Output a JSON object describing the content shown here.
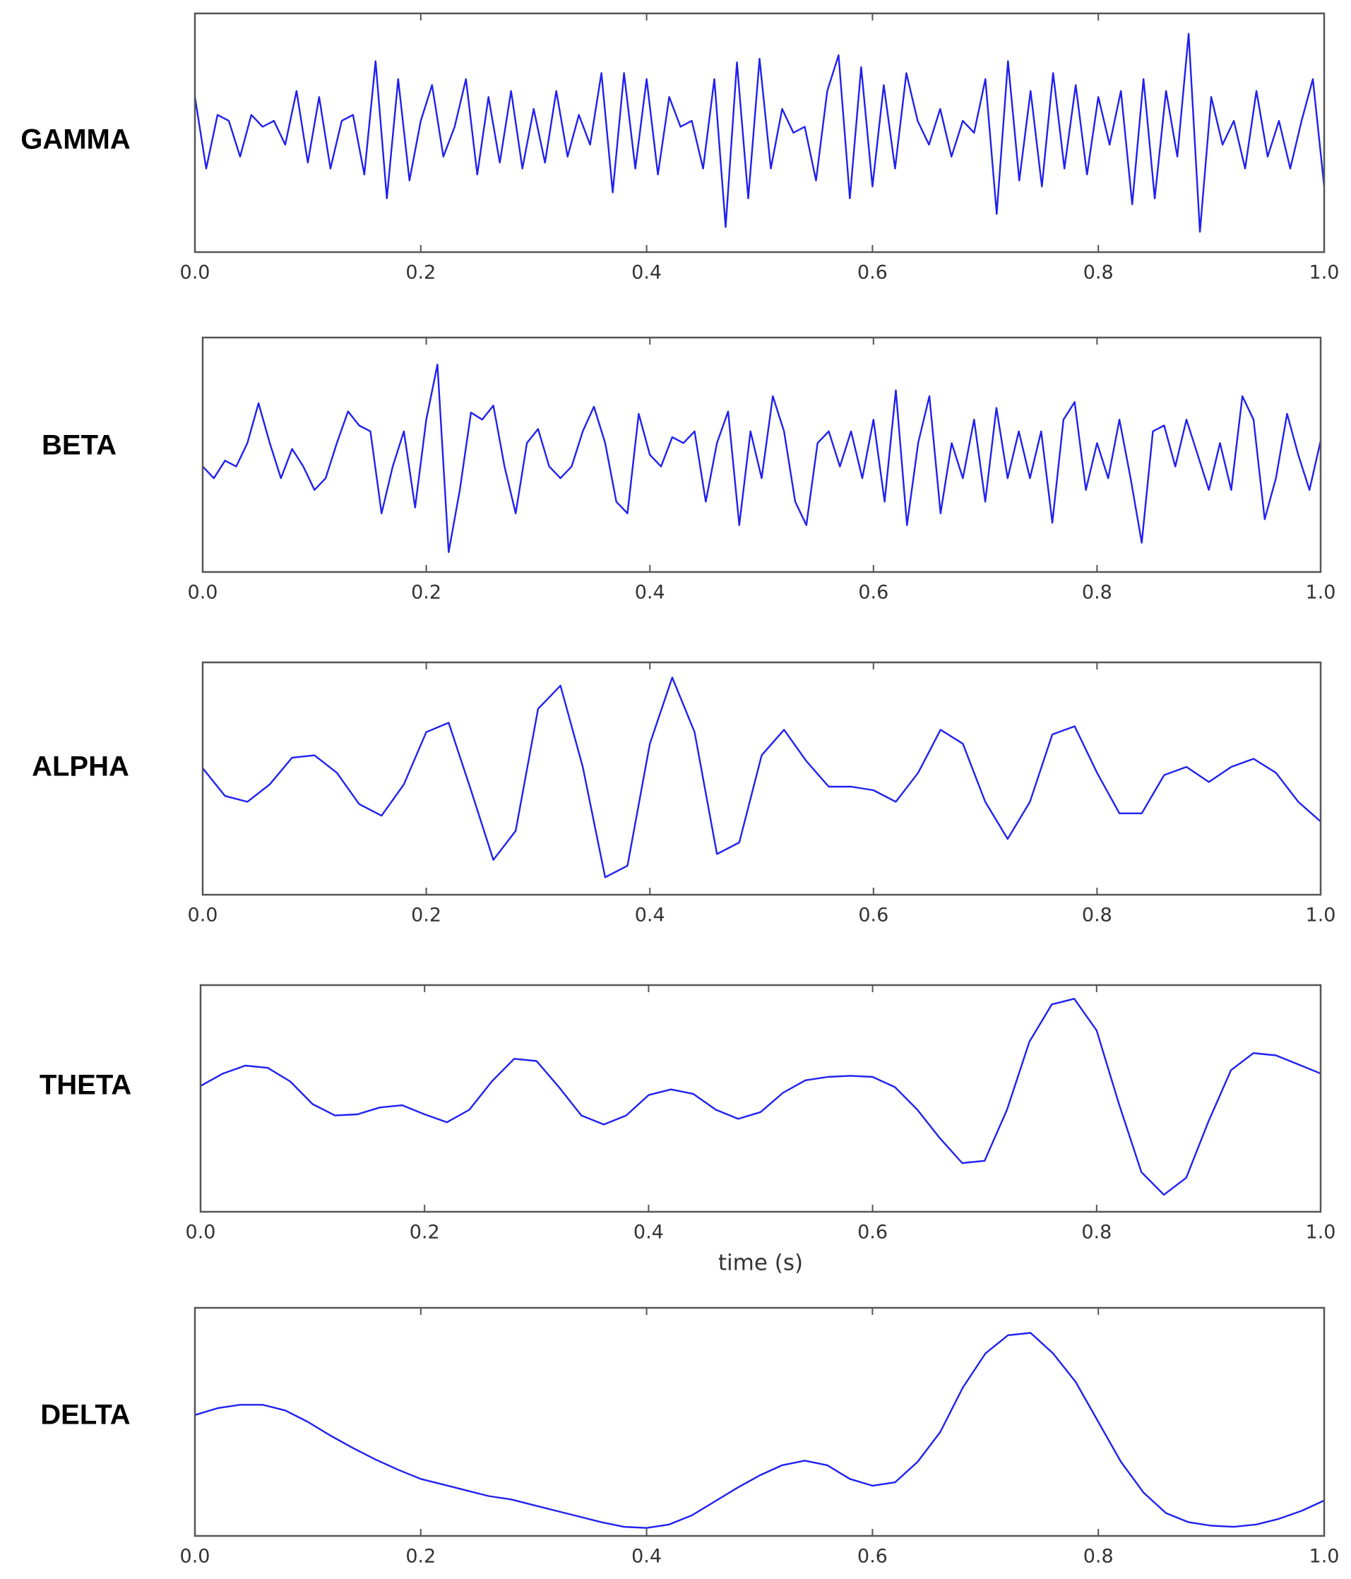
{
  "chart_data": [
    {
      "type": "line",
      "title": "GAMMA",
      "color": "#2020f0",
      "xlim": [
        0,
        1
      ],
      "ylim": [
        -1,
        1
      ],
      "xticks": [
        {
          "value": 0,
          "label": "0.0"
        },
        {
          "value": 0.2,
          "label": "0.2"
        },
        {
          "value": 0.4,
          "label": "0.4"
        },
        {
          "value": 0.6,
          "label": "0.6"
        },
        {
          "value": 0.8,
          "label": "0.8"
        },
        {
          "value": 1,
          "label": "1.0"
        }
      ],
      "x": [
        0,
        0.01,
        0.02,
        0.03,
        0.04,
        0.05,
        0.06,
        0.07,
        0.08,
        0.09,
        0.1,
        0.11,
        0.12,
        0.13,
        0.14,
        0.15,
        0.16,
        0.17,
        0.18,
        0.19,
        0.2,
        0.21,
        0.22,
        0.23,
        0.24,
        0.25,
        0.26,
        0.27,
        0.28,
        0.29,
        0.3,
        0.31,
        0.32,
        0.33,
        0.34,
        0.35,
        0.36,
        0.37,
        0.38,
        0.39,
        0.4,
        0.41,
        0.42,
        0.43,
        0.44,
        0.45,
        0.46,
        0.47,
        0.48,
        0.49,
        0.5,
        0.51,
        0.52,
        0.53,
        0.54,
        0.55,
        0.56,
        0.57,
        0.58,
        0.59,
        0.6,
        0.61,
        0.62,
        0.63,
        0.64,
        0.65,
        0.66,
        0.67,
        0.68,
        0.69,
        0.7,
        0.71,
        0.72,
        0.73,
        0.74,
        0.75,
        0.76,
        0.77,
        0.78,
        0.79,
        0.8,
        0.81,
        0.82,
        0.83,
        0.84,
        0.85,
        0.86,
        0.87,
        0.88,
        0.89,
        0.9,
        0.91,
        0.92,
        0.93,
        0.94,
        0.95,
        0.96,
        0.97,
        0.98,
        0.99,
        1
      ],
      "values": [
        0.3,
        -0.3,
        0.15,
        0.1,
        -0.2,
        0.15,
        0.05,
        0.1,
        -0.1,
        0.35,
        -0.25,
        0.3,
        -0.3,
        0.1,
        0.15,
        -0.35,
        0.6,
        -0.55,
        0.45,
        -0.4,
        0.1,
        0.4,
        -0.2,
        0.05,
        0.45,
        -0.35,
        0.3,
        -0.25,
        0.35,
        -0.3,
        0.2,
        -0.25,
        0.35,
        -0.2,
        0.15,
        -0.1,
        0.5,
        -0.5,
        0.5,
        -0.3,
        0.45,
        -0.35,
        0.3,
        0.05,
        0.1,
        -0.3,
        0.45,
        -0.79,
        0.59,
        -0.55,
        0.62,
        -0.3,
        0.2,
        0,
        0.05,
        -0.4,
        0.35,
        0.65,
        -0.55,
        0.55,
        -0.45,
        0.4,
        -0.3,
        0.5,
        0.1,
        -0.1,
        0.2,
        -0.2,
        0.1,
        0,
        0.45,
        -0.68,
        0.6,
        -0.4,
        0.35,
        -0.45,
        0.5,
        -0.3,
        0.4,
        -0.35,
        0.3,
        -0.1,
        0.35,
        -0.6,
        0.45,
        -0.55,
        0.35,
        -0.2,
        0.83,
        -0.83,
        0.3,
        -0.1,
        0.1,
        -0.3,
        0.35,
        -0.2,
        0.1,
        -0.3,
        0.1,
        0.45,
        -0.45
      ]
    },
    {
      "type": "line",
      "title": "BETA",
      "color": "#2020f0",
      "xlim": [
        0,
        1
      ],
      "ylim": [
        -1,
        1
      ],
      "xticks": [
        {
          "value": 0,
          "label": "0.0"
        },
        {
          "value": 0.2,
          "label": "0.2"
        },
        {
          "value": 0.4,
          "label": "0.4"
        },
        {
          "value": 0.6,
          "label": "0.6"
        },
        {
          "value": 0.8,
          "label": "0.8"
        },
        {
          "value": 1,
          "label": "1.0"
        }
      ],
      "x": [
        0,
        0.01,
        0.02,
        0.03,
        0.04,
        0.05,
        0.06,
        0.07,
        0.08,
        0.09,
        0.1,
        0.11,
        0.12,
        0.13,
        0.14,
        0.15,
        0.16,
        0.17,
        0.18,
        0.19,
        0.2,
        0.21,
        0.22,
        0.23,
        0.24,
        0.25,
        0.26,
        0.27,
        0.28,
        0.29,
        0.3,
        0.31,
        0.32,
        0.33,
        0.34,
        0.35,
        0.36,
        0.37,
        0.38,
        0.39,
        0.4,
        0.41,
        0.42,
        0.43,
        0.44,
        0.45,
        0.46,
        0.47,
        0.48,
        0.49,
        0.5,
        0.51,
        0.52,
        0.53,
        0.54,
        0.55,
        0.56,
        0.57,
        0.58,
        0.59,
        0.6,
        0.61,
        0.62,
        0.63,
        0.64,
        0.65,
        0.66,
        0.67,
        0.68,
        0.69,
        0.7,
        0.71,
        0.72,
        0.73,
        0.74,
        0.75,
        0.76,
        0.77,
        0.78,
        0.79,
        0.8,
        0.81,
        0.82,
        0.83,
        0.84,
        0.85,
        0.86,
        0.87,
        0.88,
        0.89,
        0.9,
        0.91,
        0.92,
        0.93,
        0.94,
        0.95,
        0.96,
        0.97,
        0.98,
        0.99,
        1
      ],
      "values": [
        -0.1,
        -0.2,
        -0.05,
        -0.1,
        0.1,
        0.44,
        0.1,
        -0.2,
        0.05,
        -0.1,
        -0.3,
        -0.2,
        0.1,
        0.37,
        0.25,
        0.2,
        -0.5,
        -0.1,
        0.2,
        -0.45,
        0.3,
        0.77,
        -0.83,
        -0.3,
        0.36,
        0.3,
        0.42,
        -0.1,
        -0.5,
        0.1,
        0.22,
        -0.1,
        -0.2,
        -0.1,
        0.2,
        0.41,
        0.1,
        -0.4,
        -0.5,
        0.35,
        0,
        -0.1,
        0.15,
        0.1,
        0.2,
        -0.4,
        0.1,
        0.37,
        -0.6,
        0.2,
        -0.2,
        0.5,
        0.2,
        -0.4,
        -0.6,
        0.1,
        0.2,
        -0.1,
        0.2,
        -0.2,
        0.3,
        -0.4,
        0.55,
        -0.6,
        0.1,
        0.5,
        -0.5,
        0.1,
        -0.2,
        0.3,
        -0.4,
        0.4,
        -0.2,
        0.2,
        -0.2,
        0.2,
        -0.58,
        0.3,
        0.45,
        -0.3,
        0.1,
        -0.2,
        0.3,
        -0.2,
        -0.75,
        0.2,
        0.25,
        -0.1,
        0.3,
        0,
        -0.3,
        0.1,
        -0.3,
        0.5,
        0.3,
        -0.55,
        -0.2,
        0.35,
        0,
        -0.3,
        0.12
      ]
    },
    {
      "type": "line",
      "title": "ALPHA",
      "color": "#2020f0",
      "xlim": [
        0,
        1
      ],
      "ylim": [
        -1,
        1
      ],
      "xticks": [
        {
          "value": 0,
          "label": "0.0"
        },
        {
          "value": 0.2,
          "label": "0.2"
        },
        {
          "value": 0.4,
          "label": "0.4"
        },
        {
          "value": 0.6,
          "label": "0.6"
        },
        {
          "value": 0.8,
          "label": "0.8"
        },
        {
          "value": 1,
          "label": "1.0"
        }
      ],
      "x": [
        0,
        0.02,
        0.04,
        0.06,
        0.08,
        0.1,
        0.12,
        0.14,
        0.16,
        0.18,
        0.2,
        0.22,
        0.24,
        0.26,
        0.28,
        0.3,
        0.32,
        0.34,
        0.36,
        0.38,
        0.4,
        0.42,
        0.44,
        0.46,
        0.48,
        0.5,
        0.52,
        0.54,
        0.56,
        0.58,
        0.6,
        0.62,
        0.64,
        0.66,
        0.68,
        0.7,
        0.72,
        0.74,
        0.76,
        0.78,
        0.8,
        0.82,
        0.84,
        0.86,
        0.88,
        0.9,
        0.92,
        0.94,
        0.96,
        0.98,
        1
      ],
      "values": [
        0.09,
        -0.15,
        -0.2,
        -0.05,
        0.18,
        0.2,
        0.05,
        -0.22,
        -0.32,
        -0.05,
        0.4,
        0.48,
        -0.1,
        -0.7,
        -0.45,
        0.6,
        0.8,
        0.1,
        -0.85,
        -0.75,
        0.3,
        0.87,
        0.4,
        -0.65,
        -0.55,
        0.2,
        0.42,
        0.15,
        -0.07,
        -0.07,
        -0.1,
        -0.2,
        0.05,
        0.42,
        0.3,
        -0.2,
        -0.52,
        -0.2,
        0.38,
        0.45,
        0.05,
        -0.3,
        -0.3,
        0.03,
        0.1,
        -0.03,
        0.1,
        0.17,
        0.05,
        -0.2,
        -0.37
      ]
    },
    {
      "type": "line",
      "title": "THETA",
      "xlabel": "time (s)",
      "color": "#2020f0",
      "xlim": [
        0,
        1
      ],
      "ylim": [
        -1,
        1
      ],
      "xticks": [
        {
          "value": 0,
          "label": "0.0"
        },
        {
          "value": 0.2,
          "label": "0.2"
        },
        {
          "value": 0.4,
          "label": "0.4"
        },
        {
          "value": 0.6,
          "label": "0.6"
        },
        {
          "value": 0.8,
          "label": "0.8"
        },
        {
          "value": 1,
          "label": "1.0"
        }
      ],
      "x": [
        0,
        0.02,
        0.04,
        0.06,
        0.08,
        0.1,
        0.12,
        0.14,
        0.16,
        0.18,
        0.2,
        0.22,
        0.24,
        0.26,
        0.28,
        0.3,
        0.32,
        0.34,
        0.36,
        0.38,
        0.4,
        0.42,
        0.44,
        0.46,
        0.48,
        0.5,
        0.52,
        0.54,
        0.56,
        0.58,
        0.6,
        0.62,
        0.64,
        0.66,
        0.68,
        0.7,
        0.72,
        0.74,
        0.76,
        0.78,
        0.8,
        0.82,
        0.84,
        0.86,
        0.88,
        0.9,
        0.92,
        0.94,
        0.96,
        0.98,
        1
      ],
      "values": [
        0.11,
        0.22,
        0.29,
        0.27,
        0.15,
        -0.05,
        -0.15,
        -0.14,
        -0.08,
        -0.06,
        -0.14,
        -0.21,
        -0.1,
        0.15,
        0.35,
        0.33,
        0.1,
        -0.15,
        -0.23,
        -0.15,
        0.03,
        0.08,
        0.04,
        -0.1,
        -0.18,
        -0.12,
        0.05,
        0.16,
        0.19,
        0.2,
        0.19,
        0.1,
        -0.1,
        -0.35,
        -0.57,
        -0.55,
        -0.1,
        0.5,
        0.83,
        0.88,
        0.6,
        -0.05,
        -0.65,
        -0.85,
        -0.7,
        -0.2,
        0.25,
        0.4,
        0.38,
        0.3,
        0.22
      ]
    },
    {
      "type": "line",
      "title": "DELTA",
      "color": "#2020f0",
      "xlim": [
        0,
        1
      ],
      "ylim": [
        -1,
        1
      ],
      "xticks": [
        {
          "value": 0,
          "label": "0.0"
        },
        {
          "value": 0.2,
          "label": "0.2"
        },
        {
          "value": 0.4,
          "label": "0.4"
        },
        {
          "value": 0.6,
          "label": "0.6"
        },
        {
          "value": 0.8,
          "label": "0.8"
        },
        {
          "value": 1,
          "label": "1.0"
        }
      ],
      "x": [
        0,
        0.02,
        0.04,
        0.06,
        0.08,
        0.1,
        0.12,
        0.14,
        0.16,
        0.18,
        0.2,
        0.22,
        0.24,
        0.26,
        0.28,
        0.3,
        0.32,
        0.34,
        0.36,
        0.38,
        0.4,
        0.42,
        0.44,
        0.46,
        0.48,
        0.5,
        0.52,
        0.54,
        0.56,
        0.58,
        0.6,
        0.62,
        0.64,
        0.66,
        0.68,
        0.7,
        0.72,
        0.74,
        0.76,
        0.78,
        0.8,
        0.82,
        0.84,
        0.86,
        0.88,
        0.9,
        0.92,
        0.94,
        0.96,
        0.98,
        1
      ],
      "values": [
        0.06,
        0.12,
        0.15,
        0.15,
        0.1,
        0,
        -0.12,
        -0.23,
        -0.33,
        -0.42,
        -0.5,
        -0.55,
        -0.6,
        -0.65,
        -0.68,
        -0.73,
        -0.78,
        -0.83,
        -0.88,
        -0.92,
        -0.93,
        -0.9,
        -0.82,
        -0.7,
        -0.58,
        -0.47,
        -0.38,
        -0.34,
        -0.38,
        -0.5,
        -0.56,
        -0.53,
        -0.35,
        -0.09,
        0.3,
        0.6,
        0.76,
        0.78,
        0.6,
        0.35,
        0,
        -0.35,
        -0.62,
        -0.8,
        -0.88,
        -0.91,
        -0.92,
        -0.9,
        -0.85,
        -0.78,
        -0.69
      ]
    }
  ]
}
